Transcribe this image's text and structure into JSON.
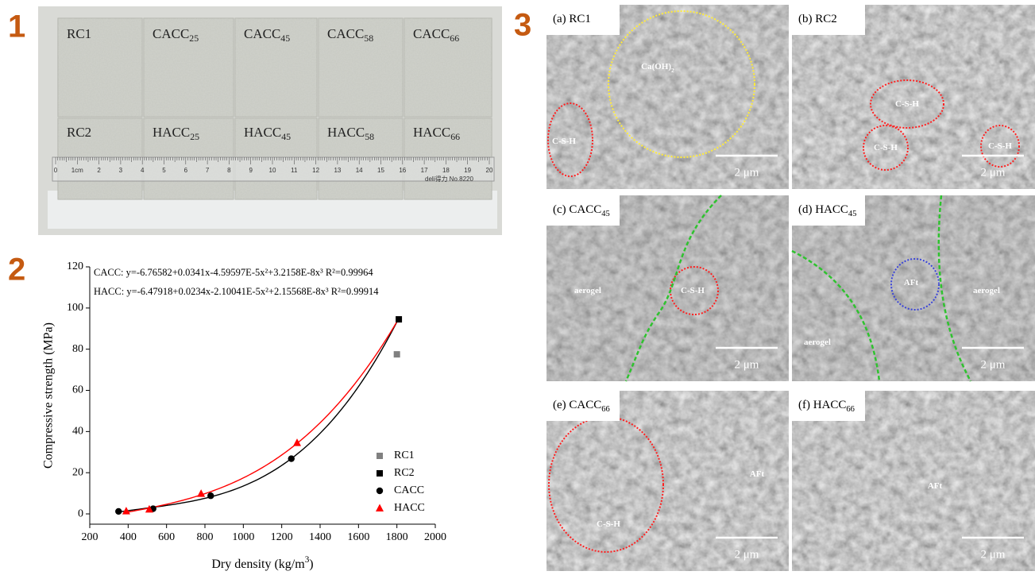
{
  "panel_labels": [
    "1",
    "2",
    "3"
  ],
  "photo": {
    "blocks": [
      {
        "text": "RC1"
      },
      {
        "text": "CACC",
        "sub": "25"
      },
      {
        "text": "CACC",
        "sub": "45"
      },
      {
        "text": "CACC",
        "sub": "58"
      },
      {
        "text": "CACC",
        "sub": "66"
      },
      {
        "text": "RC2"
      },
      {
        "text": "HACC",
        "sub": "25"
      },
      {
        "text": "HACC",
        "sub": "45"
      },
      {
        "text": "HACC",
        "sub": "58"
      },
      {
        "text": "HACC",
        "sub": "66"
      }
    ],
    "ruler_marks": [
      "0",
      "1cm",
      "2",
      "3",
      "4",
      "5",
      "6",
      "7",
      "8",
      "9",
      "10",
      "11",
      "12",
      "13",
      "14",
      "15",
      "16",
      "17",
      "18",
      "19",
      "20"
    ],
    "brand": "deli得力 No.8220"
  },
  "chart_data": {
    "type": "scatter",
    "ylabel": "Compressive strength (MPa)",
    "xlabel": {
      "text": "Dry density (kg/m",
      "sup": "3",
      "tail": ")"
    },
    "annotations": [
      "CACC:  y=-6.76582+0.0341x-4.59597E-5x²+3.2158E-8x³  R²=0.99964",
      "HACC:  y=-6.47918+0.0234x-2.10041E-5x²+2.15568E-8x³  R²=0.99914"
    ],
    "xlim": [
      200,
      2000
    ],
    "xticks": [
      200,
      400,
      600,
      800,
      1000,
      1200,
      1400,
      1600,
      1800,
      2000
    ],
    "ylim": [
      -5,
      120
    ],
    "yticks": [
      0,
      20,
      40,
      60,
      80,
      100,
      120
    ],
    "legend": "lower right",
    "series": [
      {
        "name": "RC1",
        "color": "#808080",
        "marker": "square",
        "x": [
          1800
        ],
        "values": [
          77.5
        ]
      },
      {
        "name": "RC2",
        "color": "#000000",
        "marker": "square",
        "x": [
          1810
        ],
        "values": [
          94.5
        ]
      },
      {
        "name": "CACC",
        "color": "#000000",
        "marker": "circle",
        "x": [
          350,
          530,
          830,
          1250
        ],
        "values": [
          1.2,
          2.5,
          8.8,
          26.8
        ],
        "fit": [
          -6.76582,
          0.0341,
          -4.59597e-05,
          3.2158e-08
        ]
      },
      {
        "name": "HACC",
        "color": "#ff0000",
        "marker": "triangle",
        "x": [
          390,
          510,
          780,
          1280
        ],
        "values": [
          1.3,
          2.2,
          9.8,
          34.5
        ],
        "fit": [
          -6.47918,
          0.0234,
          -2.10041e-05,
          2.15568e-08
        ]
      }
    ]
  },
  "sem": {
    "scale": "2 μm",
    "panels": [
      {
        "label": {
          "text": "(a) RC1"
        },
        "annotations": [
          {
            "text": "Ca(OH)",
            "sub": "2"
          },
          {
            "text": "C-S-H"
          }
        ]
      },
      {
        "label": {
          "text": "(b) RC2"
        },
        "annotations": [
          {
            "text": "C-S-H"
          },
          {
            "text": "C-S-H"
          },
          {
            "text": "C-S-H"
          }
        ]
      },
      {
        "label": {
          "text": "(c) CACC",
          "sub": "45"
        },
        "annotations": [
          {
            "text": "aerogel"
          },
          {
            "text": "C-S-H"
          }
        ]
      },
      {
        "label": {
          "text": "(d) HACC",
          "sub": "45"
        },
        "annotations": [
          {
            "text": "AFt"
          },
          {
            "text": "aerogel"
          },
          {
            "text": "aerogel"
          }
        ]
      },
      {
        "label": {
          "text": "(e) CACC",
          "sub": "66"
        },
        "annotations": [
          {
            "text": "C-S-H"
          },
          {
            "text": "AFt"
          }
        ]
      },
      {
        "label": {
          "text": "(f) HACC",
          "sub": "66"
        },
        "annotations": [
          {
            "text": "AFt"
          }
        ]
      }
    ]
  }
}
